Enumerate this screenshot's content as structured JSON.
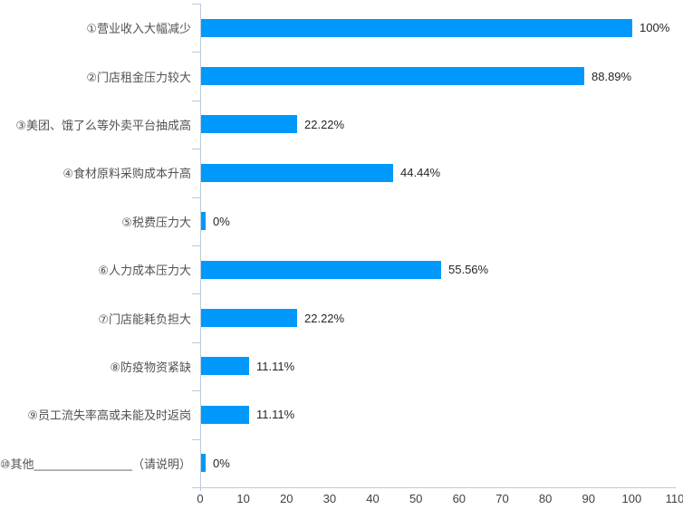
{
  "chart_data": {
    "type": "bar",
    "orientation": "horizontal",
    "title": "",
    "legend_position": "none",
    "grid": false,
    "categories": [
      "①营业收入大幅减少",
      "②门店租金压力较大",
      "③美团、饿了么等外卖平台抽成高",
      "④食材原料采购成本升高",
      "⑤税费压力大",
      "⑥人力成本压力大",
      "⑦门店能耗负担大",
      "⑧防疫物资紧缺",
      "⑨员工流失率高或未能及时返岗",
      "⑩其他_______________（请说明）"
    ],
    "values": [
      100,
      88.89,
      22.22,
      44.44,
      0,
      55.56,
      22.22,
      11.11,
      11.11,
      0
    ],
    "value_labels": [
      "100%",
      "88.89%",
      "22.22%",
      "44.44%",
      "0%",
      "55.56%",
      "22.22%",
      "11.11%",
      "11.11%",
      "0%"
    ],
    "xlabel": "",
    "ylabel": "",
    "xlim": [
      0,
      110
    ],
    "x_ticks": [
      "0",
      "10",
      "20",
      "30",
      "40",
      "50",
      "60",
      "70",
      "80",
      "90",
      "100",
      "110"
    ],
    "bar_color": "#0099fb",
    "axis_color": "#bccbd8",
    "category_label_color": "#525252",
    "value_label_color": "#262626",
    "tick_label_color": "#404040"
  }
}
